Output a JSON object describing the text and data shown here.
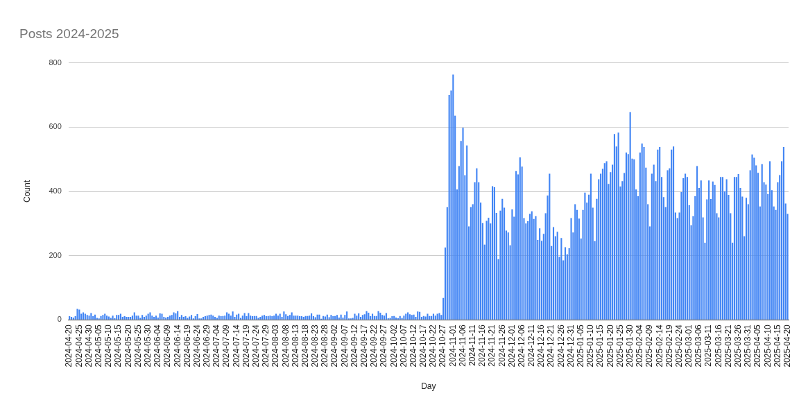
{
  "chart_data": {
    "type": "bar",
    "title": "Posts 2024-2025",
    "xlabel": "Day",
    "ylabel": "Count",
    "color": "#4285f4",
    "ylim": [
      0,
      800
    ],
    "yticks": [
      0,
      200,
      400,
      600,
      800
    ],
    "grid": "y",
    "legend": false,
    "categories": [
      "2024-04-20",
      null,
      null,
      null,
      null,
      "2024-04-25",
      null,
      null,
      null,
      null,
      "2024-04-30",
      null,
      null,
      null,
      null,
      "2024-05-05",
      null,
      null,
      null,
      null,
      "2024-05-10",
      null,
      null,
      null,
      null,
      "2024-05-15",
      null,
      null,
      null,
      null,
      "2024-05-20",
      null,
      null,
      null,
      null,
      "2024-05-25",
      null,
      null,
      null,
      null,
      "2024-05-30",
      null,
      null,
      null,
      null,
      "2024-06-04",
      null,
      null,
      null,
      null,
      "2024-06-09",
      null,
      null,
      null,
      null,
      "2024-06-14",
      null,
      null,
      null,
      null,
      "2024-06-19",
      null,
      null,
      null,
      null,
      "2024-06-24",
      null,
      null,
      null,
      null,
      "2024-06-29",
      null,
      null,
      null,
      null,
      "2024-07-04",
      null,
      null,
      null,
      null,
      "2024-07-09",
      null,
      null,
      null,
      null,
      "2024-07-14",
      null,
      null,
      null,
      null,
      "2024-07-19",
      null,
      null,
      null,
      null,
      "2024-07-24",
      null,
      null,
      null,
      null,
      "2024-07-29",
      null,
      null,
      null,
      null,
      "2024-08-03",
      null,
      null,
      null,
      null,
      "2024-08-08",
      null,
      null,
      null,
      null,
      "2024-08-13",
      null,
      null,
      null,
      null,
      "2024-08-18",
      null,
      null,
      null,
      null,
      "2024-08-23",
      null,
      null,
      null,
      null,
      "2024-08-28",
      null,
      null,
      null,
      null,
      "2024-09-02",
      null,
      null,
      null,
      null,
      "2024-09-07",
      null,
      null,
      null,
      null,
      "2024-09-12",
      null,
      null,
      null,
      null,
      "2024-09-17",
      null,
      null,
      null,
      null,
      "2024-09-22",
      null,
      null,
      null,
      null,
      "2024-09-27",
      null,
      null,
      null,
      null,
      "2024-10-02",
      null,
      null,
      null,
      null,
      "2024-10-07",
      null,
      null,
      null,
      null,
      "2024-10-12",
      null,
      null,
      null,
      null,
      "2024-10-17",
      null,
      null,
      null,
      null,
      "2024-10-22",
      null,
      null,
      null,
      null,
      "2024-10-27",
      null,
      null,
      null,
      null,
      "2024-11-01",
      null,
      null,
      null,
      null,
      "2024-11-06",
      null,
      null,
      null,
      null,
      "2024-11-11",
      null,
      null,
      null,
      null,
      "2024-11-16",
      null,
      null,
      null,
      null,
      "2024-11-21",
      null,
      null,
      null,
      null,
      "2024-11-26",
      null,
      null,
      null,
      null,
      "2024-12-01",
      null,
      null,
      null,
      null,
      "2024-12-06",
      null,
      null,
      null,
      null,
      "2024-12-11",
      null,
      null,
      null,
      null,
      "2024-12-16",
      null,
      null,
      null,
      null,
      "2024-12-21",
      null,
      null,
      null,
      null,
      "2024-12-26",
      null,
      null,
      null,
      null,
      "2024-12-31",
      null,
      null,
      null,
      null,
      "2025-01-05",
      null,
      null,
      null,
      null,
      "2025-01-10",
      null,
      null,
      null,
      null,
      "2025-01-15",
      null,
      null,
      null,
      null,
      "2025-01-20",
      null,
      null,
      null,
      null,
      "2025-01-25",
      null,
      null,
      null,
      null,
      "2025-01-30",
      null,
      null,
      null,
      null,
      "2025-02-04",
      null,
      null,
      null,
      null,
      "2025-02-09",
      null,
      null,
      null,
      null,
      "2025-02-14",
      null,
      null,
      null,
      null,
      "2025-02-19",
      null,
      null,
      null,
      null,
      "2025-02-24",
      null,
      null,
      null,
      null,
      "2025-03-01",
      null,
      null,
      null,
      null,
      "2025-03-06",
      null,
      null,
      null,
      null,
      "2025-03-11",
      null,
      null,
      null,
      null,
      "2025-03-16",
      null,
      null,
      null,
      null,
      "2025-03-21",
      null,
      null,
      null,
      null,
      "2025-03-26",
      null,
      null,
      null,
      null,
      "2025-03-31",
      null,
      null,
      null,
      null,
      "2025-04-05",
      null,
      null,
      null,
      null,
      "2025-04-10",
      null,
      null,
      null,
      null,
      "2025-04-15",
      null,
      null,
      null,
      null,
      "2025-04-20"
    ],
    "values": [
      11,
      9,
      7,
      11,
      34,
      32,
      19,
      23,
      19,
      15,
      13,
      21,
      11,
      16,
      6,
      4,
      12,
      15,
      19,
      13,
      10,
      6,
      13,
      5,
      15,
      15,
      19,
      9,
      11,
      9,
      9,
      9,
      13,
      23,
      13,
      13,
      6,
      15,
      9,
      13,
      19,
      23,
      13,
      9,
      13,
      7,
      20,
      19,
      9,
      7,
      9,
      13,
      15,
      23,
      20,
      27,
      9,
      15,
      9,
      11,
      6,
      10,
      15,
      4,
      11,
      18,
      4,
      4,
      9,
      11,
      13,
      15,
      16,
      13,
      9,
      6,
      13,
      11,
      12,
      13,
      23,
      19,
      13,
      26,
      9,
      16,
      19,
      6,
      13,
      21,
      11,
      21,
      13,
      11,
      12,
      12,
      6,
      9,
      13,
      15,
      11,
      12,
      13,
      11,
      13,
      19,
      13,
      19,
      9,
      26,
      17,
      12,
      15,
      23,
      13,
      13,
      13,
      11,
      11,
      9,
      12,
      12,
      13,
      20,
      11,
      8,
      16,
      16,
      3,
      12,
      10,
      16,
      8,
      15,
      11,
      12,
      15,
      7,
      16,
      7,
      15,
      26,
      4,
      4,
      6,
      19,
      13,
      20,
      9,
      15,
      17,
      27,
      22,
      11,
      19,
      12,
      12,
      27,
      22,
      15,
      13,
      21,
      5,
      6,
      11,
      12,
      7,
      5,
      12,
      6,
      13,
      19,
      23,
      17,
      15,
      16,
      9,
      26,
      25,
      9,
      12,
      10,
      19,
      12,
      12,
      19,
      13,
      19,
      21,
      15,
      68,
      225,
      351,
      700,
      714,
      764,
      636,
      406,
      479,
      557,
      598,
      450,
      543,
      291,
      351,
      360,
      428,
      472,
      428,
      365,
      301,
      234,
      308,
      318,
      300,
      416,
      413,
      333,
      189,
      340,
      377,
      349,
      278,
      272,
      232,
      344,
      321,
      463,
      453,
      506,
      477,
      317,
      300,
      307,
      330,
      338,
      314,
      323,
      249,
      285,
      246,
      268,
      332,
      387,
      455,
      230,
      289,
      260,
      274,
      196,
      255,
      185,
      226,
      204,
      223,
      317,
      272,
      360,
      342,
      315,
      253,
      342,
      396,
      365,
      390,
      455,
      349,
      245,
      377,
      438,
      455,
      470,
      488,
      494,
      423,
      460,
      483,
      579,
      540,
      583,
      415,
      432,
      457,
      521,
      516,
      647,
      502,
      500,
      406,
      385,
      521,
      549,
      538,
      474,
      360,
      291,
      455,
      483,
      432,
      530,
      538,
      445,
      382,
      351,
      466,
      472,
      530,
      540,
      334,
      317,
      334,
      398,
      441,
      455,
      445,
      357,
      294,
      323,
      385,
      479,
      411,
      434,
      319,
      240,
      375,
      434,
      376,
      431,
      420,
      332,
      319,
      445,
      445,
      400,
      438,
      389,
      332,
      240,
      445,
      445,
      454,
      411,
      384,
      260,
      380,
      360,
      466,
      515,
      505,
      481,
      458,
      353,
      485,
      428,
      421,
      392,
      494,
      404,
      353,
      342,
      428,
      451,
      494,
      538,
      362,
      330
    ]
  }
}
